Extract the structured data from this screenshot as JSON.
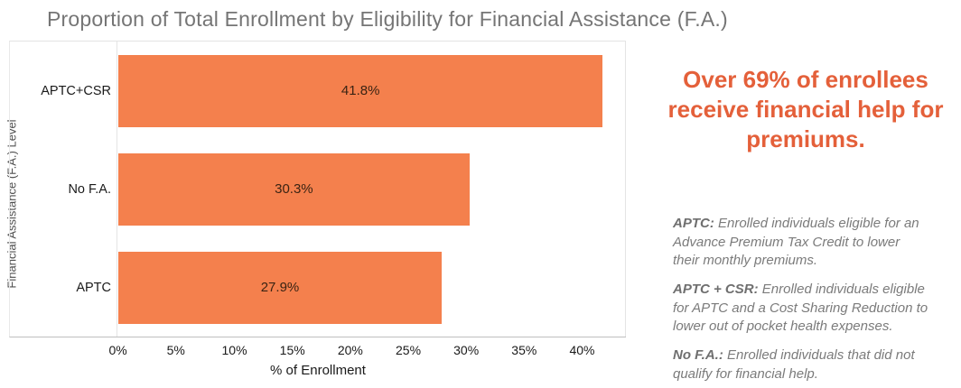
{
  "title": "Proportion of Total Enrollment by Eligibility for Financial Assistance (F.A.)",
  "chart_data": {
    "type": "bar",
    "orientation": "horizontal",
    "title": "Proportion of Total Enrollment by Eligibility for Financial Assistance (F.A.)",
    "categories": [
      "APTC+CSR",
      "No F.A.",
      "APTC"
    ],
    "values": [
      41.8,
      30.3,
      27.9
    ],
    "value_labels": [
      "41.8%",
      "30.3%",
      "27.9%"
    ],
    "xlabel": "% of Enrollment",
    "ylabel": "Financial Assistance (F.A.) Level",
    "xlim": [
      0,
      43.8
    ],
    "xticks": [
      0,
      5,
      10,
      15,
      20,
      25,
      30,
      35,
      40
    ],
    "xtick_labels": [
      "0%",
      "5%",
      "10%",
      "15%",
      "20%",
      "25%",
      "30%",
      "35%",
      "40%"
    ],
    "grid": false,
    "legend": "none",
    "bar_color": "#F4804D"
  },
  "callout": {
    "text": "Over 69% of enrollees receive financial help for premiums.",
    "color": "#E4603A"
  },
  "definitions": [
    {
      "term": "APTC:",
      "text": " Enrolled individuals eligible for an Advance Premium Tax Credit to lower their monthly premiums."
    },
    {
      "term": "APTC + CSR:",
      "text": " Enrolled individuals eligible for APTC and a Cost Sharing Reduction to lower out of pocket health expenses."
    },
    {
      "term": "No F.A.:",
      "text": " Enrolled individuals that did not qualify for financial help."
    }
  ]
}
